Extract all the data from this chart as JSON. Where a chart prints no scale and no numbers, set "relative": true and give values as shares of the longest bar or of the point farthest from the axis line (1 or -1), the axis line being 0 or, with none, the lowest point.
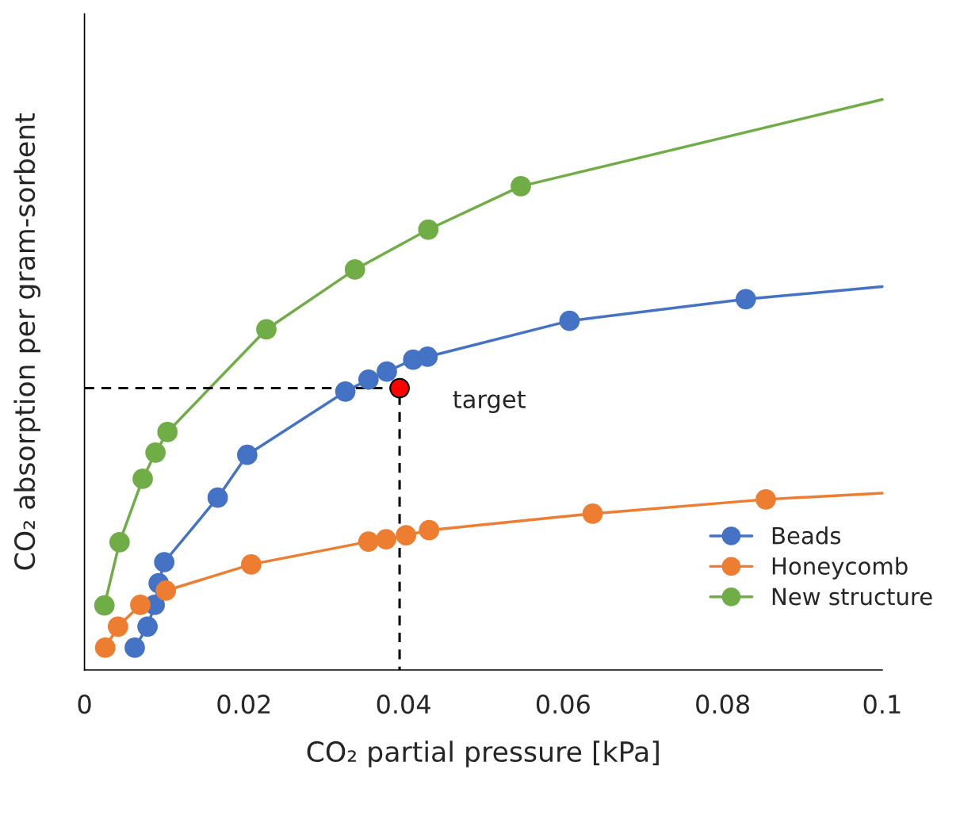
{
  "chart_data": {
    "type": "line",
    "relative": true,
    "xlabel": "CO₂ partial pressure [kPa]",
    "ylabel": "CO₂ absorption per gram-sorbent",
    "xlim": [
      0,
      0.1
    ],
    "xticks": [
      0,
      0.02,
      0.04,
      0.06,
      0.08,
      0.1
    ],
    "legend": "bottom right",
    "grid": false,
    "series": [
      {
        "color": "#4472c4",
        "x": [
          0.0063,
          0.0079,
          0.0088,
          0.0093,
          0.01,
          0.0167,
          0.0204,
          0.0327,
          0.0356,
          0.0379,
          0.0412,
          0.043,
          0.0608,
          0.0829,
          0.1
        ],
        "values": [
          0.039,
          0.076,
          0.114,
          0.152,
          0.189,
          0.302,
          0.377,
          0.488,
          0.509,
          0.523,
          0.544,
          0.549,
          0.612,
          0.65,
          0.672
        ]
      },
      {
        "color": "#ed7d31",
        "x": [
          0.0026,
          0.0042,
          0.007,
          0.0102,
          0.0209,
          0.0356,
          0.0378,
          0.0403,
          0.0432,
          0.0637,
          0.0854,
          0.1
        ],
        "values": [
          0.039,
          0.076,
          0.114,
          0.139,
          0.185,
          0.225,
          0.229,
          0.236,
          0.245,
          0.274,
          0.299,
          0.31
        ]
      },
      {
        "color": "#70ad47",
        "x": [
          0.0025,
          0.0044,
          0.0073,
          0.0089,
          0.0104,
          0.0228,
          0.0339,
          0.0431,
          0.0547,
          0.1
        ],
        "values": [
          0.113,
          0.224,
          0.335,
          0.381,
          0.417,
          0.597,
          0.702,
          0.772,
          0.848,
          1.0
        ]
      },
      {
        "color": "#000000",
        "line_style": "dashed",
        "x": [
          0,
          0.0395,
          0.0395
        ],
        "values": [
          0.494,
          0.494,
          0
        ]
      },
      {
        "type": "scatter",
        "name": "Beads",
        "color": "#4472c4",
        "x": [
          0.0063,
          0.0079,
          0.0088,
          0.0093,
          0.01,
          0.0167,
          0.0204,
          0.0327,
          0.0356,
          0.0379,
          0.0412,
          0.043,
          0.0608,
          0.0829
        ],
        "values": [
          0.039,
          0.076,
          0.114,
          0.152,
          0.189,
          0.302,
          0.377,
          0.488,
          0.509,
          0.523,
          0.544,
          0.549,
          0.612,
          0.65
        ]
      },
      {
        "type": "scatter",
        "name": "Honeycomb",
        "color": "#ed7d31",
        "x": [
          0.0026,
          0.0042,
          0.007,
          0.0102,
          0.0209,
          0.0356,
          0.0378,
          0.0403,
          0.0432,
          0.0637,
          0.0854
        ],
        "values": [
          0.039,
          0.076,
          0.114,
          0.139,
          0.185,
          0.225,
          0.229,
          0.236,
          0.245,
          0.274,
          0.299
        ]
      },
      {
        "type": "scatter",
        "name": "New structure",
        "color": "#70ad47",
        "x": [
          0.0025,
          0.0044,
          0.0073,
          0.0089,
          0.0104,
          0.0228,
          0.0339,
          0.0431,
          0.0547
        ],
        "values": [
          0.113,
          0.224,
          0.335,
          0.381,
          0.417,
          0.597,
          0.702,
          0.772,
          0.848
        ]
      },
      {
        "type": "scatter",
        "color": "#ff0000",
        "x": [
          0.0395
        ],
        "values": [
          0.494
        ]
      }
    ],
    "annotations": [
      {
        "text": "target",
        "x": 0.0395,
        "y": 0.494
      }
    ]
  }
}
